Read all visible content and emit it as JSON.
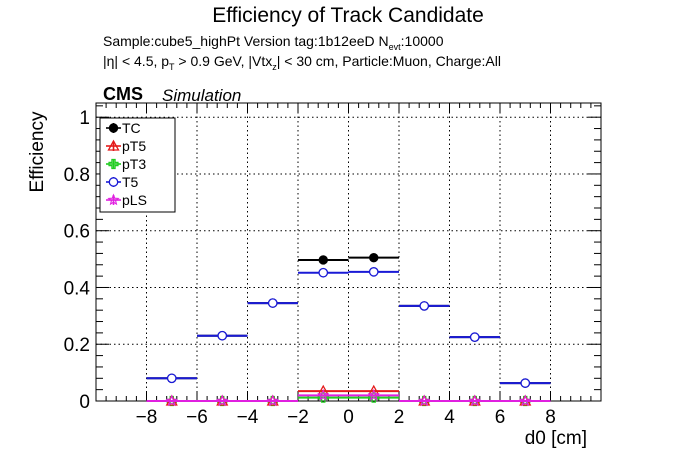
{
  "chart_data": {
    "type": "scatter",
    "title": "Efficiency of Track Candidate",
    "subtitle_line1": {
      "sample": "Sample:cube5_highPt   Version tag:1b12eeD  N",
      "sub": "evt",
      "rest": ":10000"
    },
    "subtitle_line2": {
      "p1": "|η| < 4.5, p",
      "s1": "T",
      "p2": " > 0.9 GeV, |Vtx",
      "s2": "z",
      "p3": "| < 30 cm, Particle:Muon, Charge:All"
    },
    "cms_label": "CMS",
    "simulation_label": "Simulation",
    "xlabel": "d0 [cm]",
    "ylabel": "Efficiency",
    "xlim": [
      -10,
      10
    ],
    "ylim": [
      0,
      1.05
    ],
    "x_ticks": [
      "−8",
      "−6",
      "−4",
      "−2",
      "0",
      "2",
      "4",
      "6",
      "8"
    ],
    "x_tick_values": [
      -8,
      -6,
      -4,
      -2,
      0,
      2,
      4,
      6,
      8
    ],
    "y_ticks": [
      "0",
      "0.2",
      "0.4",
      "0.6",
      "0.8",
      "1"
    ],
    "y_tick_values": [
      0,
      0.2,
      0.4,
      0.6,
      0.8,
      1.0
    ],
    "grid": true,
    "legend_position": "top-left",
    "bin_edges": [
      -8,
      -6,
      -4,
      -2,
      0,
      2,
      4,
      6,
      8
    ],
    "bin_centers": [
      -7,
      -5,
      -3,
      -1,
      1,
      3,
      5,
      7
    ],
    "series": [
      {
        "name": "TC",
        "color": "#000000",
        "marker": "filled-circle",
        "values": [
          0.08,
          0.23,
          0.345,
          0.497,
          0.505,
          0.335,
          0.225,
          0.063
        ],
        "errors": [
          0.01,
          0.008,
          0.007,
          0.006,
          0.006,
          0.007,
          0.008,
          0.008
        ]
      },
      {
        "name": "pT5",
        "color": "#e41a1a",
        "marker": "open-triangle",
        "values": [
          0,
          0,
          0,
          0.035,
          0.035,
          0,
          0,
          0
        ],
        "errors": [
          0,
          0,
          0,
          0.004,
          0.004,
          0,
          0,
          0
        ]
      },
      {
        "name": "pT3",
        "color": "#22cc22",
        "marker": "open-cross",
        "values": [
          0,
          0,
          0,
          0.012,
          0.012,
          0,
          0,
          0
        ],
        "errors": [
          0,
          0,
          0,
          0.002,
          0.002,
          0,
          0,
          0
        ]
      },
      {
        "name": "T5",
        "color": "#1a1ad6",
        "marker": "open-circle",
        "values": [
          0.08,
          0.23,
          0.345,
          0.452,
          0.455,
          0.335,
          0.225,
          0.063
        ],
        "errors": [
          0.01,
          0.008,
          0.007,
          0.006,
          0.006,
          0.007,
          0.008,
          0.008
        ]
      },
      {
        "name": "pLS",
        "color": "#e020e0",
        "marker": "open-star",
        "values": [
          0,
          0,
          0,
          0.02,
          0.02,
          0,
          0,
          0
        ],
        "errors": [
          0,
          0,
          0,
          0.003,
          0.003,
          0,
          0,
          0
        ]
      }
    ]
  }
}
